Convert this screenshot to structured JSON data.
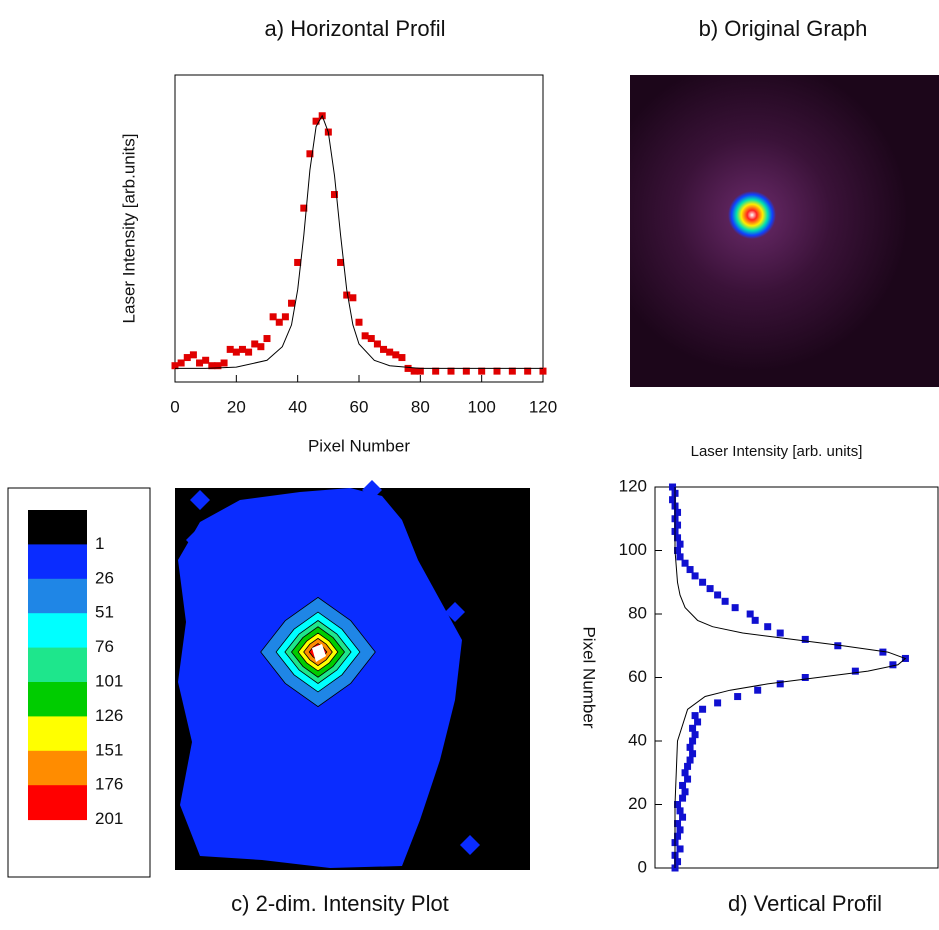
{
  "chart_data": [
    {
      "type": "scatter",
      "title": "a) Horizontal Profil",
      "x_label": "Pixel Number",
      "y_label": "Laser Intensity [arb.units]",
      "xlim": [
        0,
        120
      ],
      "xticks": [
        0,
        20,
        40,
        60,
        80,
        100,
        120
      ],
      "ylim": [
        -0.04,
        1.09
      ],
      "series": [
        {
          "color": "#e00000",
          "marker": "square",
          "x": [
            0,
            2,
            4,
            6,
            8,
            10,
            12,
            14,
            16,
            18,
            20,
            22,
            24,
            26,
            28,
            30,
            32,
            34,
            36,
            38,
            40,
            42,
            44,
            46,
            48,
            50,
            52,
            54,
            56,
            58,
            60,
            62,
            64,
            66,
            68,
            70,
            72,
            74,
            76,
            78,
            80,
            85,
            90,
            95,
            100,
            105,
            110,
            115,
            120
          ],
          "values": [
            0.02,
            0.03,
            0.05,
            0.06,
            0.03,
            0.04,
            0.02,
            0.02,
            0.03,
            0.08,
            0.07,
            0.08,
            0.07,
            0.1,
            0.09,
            0.12,
            0.2,
            0.18,
            0.2,
            0.25,
            0.4,
            0.6,
            0.8,
            0.92,
            0.94,
            0.88,
            0.65,
            0.4,
            0.28,
            0.27,
            0.18,
            0.13,
            0.12,
            0.1,
            0.08,
            0.07,
            0.06,
            0.05,
            0.01,
            0,
            0,
            0,
            0,
            0,
            0,
            0,
            0,
            0,
            0
          ]
        },
        {
          "color": "#000000",
          "marker": "line",
          "x": [
            0,
            10,
            20,
            30,
            35,
            38,
            40,
            42,
            44,
            46,
            48,
            50,
            52,
            54,
            56,
            58,
            60,
            65,
            70,
            80,
            100,
            120
          ],
          "values": [
            0.01,
            0.01,
            0.015,
            0.04,
            0.09,
            0.17,
            0.3,
            0.5,
            0.74,
            0.9,
            0.94,
            0.88,
            0.72,
            0.5,
            0.3,
            0.17,
            0.1,
            0.04,
            0.02,
            0.01,
            0.01,
            0.01
          ]
        }
      ]
    },
    {
      "type": "image",
      "title": "b) Original Graph"
    },
    {
      "type": "contour",
      "title": "c) 2-dim. Intensity Plot",
      "levels": [
        1,
        26,
        51,
        76,
        101,
        126,
        151,
        176,
        201
      ],
      "colors": [
        "#000000",
        "#0a2cff",
        "#1f86e6",
        "#00ffff",
        "#1ee68c",
        "#00cc00",
        "#ffff00",
        "#ff8c00",
        "#ff0000"
      ]
    },
    {
      "type": "scatter",
      "orientation": "horizontal",
      "title": "d) Vertical Profil",
      "x_label": "Laser Intensity [arb. units]",
      "y_label": "Pixel Number",
      "ylim": [
        0,
        120
      ],
      "yticks": [
        0,
        20,
        40,
        60,
        80,
        100,
        120
      ],
      "xlim": [
        -0.05,
        1.08
      ],
      "series": [
        {
          "color": "#1010d0",
          "marker": "square",
          "x": [
            0,
            2,
            4,
            6,
            8,
            10,
            12,
            14,
            16,
            18,
            20,
            22,
            24,
            26,
            28,
            30,
            32,
            34,
            36,
            38,
            40,
            42,
            44,
            46,
            48,
            50,
            52,
            54,
            56,
            58,
            60,
            62,
            64,
            66,
            68,
            70,
            72,
            74,
            76,
            78,
            80,
            82,
            84,
            86,
            88,
            90,
            92,
            94,
            96,
            98,
            100,
            102,
            104,
            106,
            108,
            110,
            112,
            114,
            116,
            118,
            120
          ],
          "values": [
            0.03,
            0.04,
            0.03,
            0.05,
            0.03,
            0.04,
            0.05,
            0.04,
            0.06,
            0.05,
            0.04,
            0.06,
            0.07,
            0.06,
            0.08,
            0.07,
            0.08,
            0.09,
            0.1,
            0.09,
            0.1,
            0.11,
            0.1,
            0.12,
            0.11,
            0.14,
            0.2,
            0.28,
            0.36,
            0.45,
            0.55,
            0.75,
            0.9,
            0.95,
            0.86,
            0.68,
            0.55,
            0.45,
            0.4,
            0.35,
            0.33,
            0.27,
            0.23,
            0.2,
            0.17,
            0.14,
            0.11,
            0.09,
            0.07,
            0.05,
            0.04,
            0.05,
            0.04,
            0.03,
            0.04,
            0.03,
            0.04,
            0.03,
            0.02,
            0.03,
            0.02
          ]
        },
        {
          "color": "#000000",
          "marker": "line",
          "x": [
            0,
            20,
            40,
            50,
            54,
            56,
            58,
            60,
            62,
            64,
            66,
            68,
            70,
            72,
            74,
            76,
            78,
            82,
            86,
            90,
            100,
            120
          ],
          "values": [
            0.03,
            0.03,
            0.04,
            0.08,
            0.15,
            0.25,
            0.4,
            0.6,
            0.8,
            0.92,
            0.95,
            0.88,
            0.7,
            0.5,
            0.3,
            0.18,
            0.12,
            0.07,
            0.05,
            0.04,
            0.03,
            0.03
          ]
        }
      ]
    }
  ]
}
